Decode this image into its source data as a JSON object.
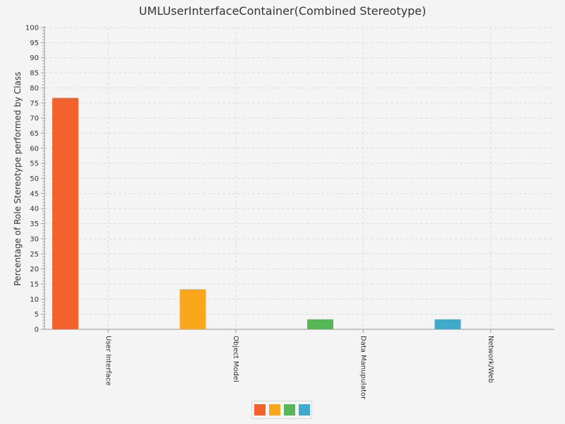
{
  "chart_data": {
    "type": "bar",
    "title": "UMLUserInterfaceContainer(Combined Stereotype)",
    "xlabel": "",
    "ylabel": "Percentage of Role Stereotype performed by Class",
    "ylim": [
      0,
      100
    ],
    "ytick_step": 5,
    "grid": true,
    "legend_placement": "bottom-center",
    "categories": [
      "User Interface",
      "Object Model",
      "Data Manupulator",
      "Network/Web"
    ],
    "values": [
      76.7,
      13.3,
      3.3,
      3.3
    ],
    "colors": [
      "#f3622d",
      "#fba71b",
      "#57b757",
      "#41a9c9"
    ]
  }
}
